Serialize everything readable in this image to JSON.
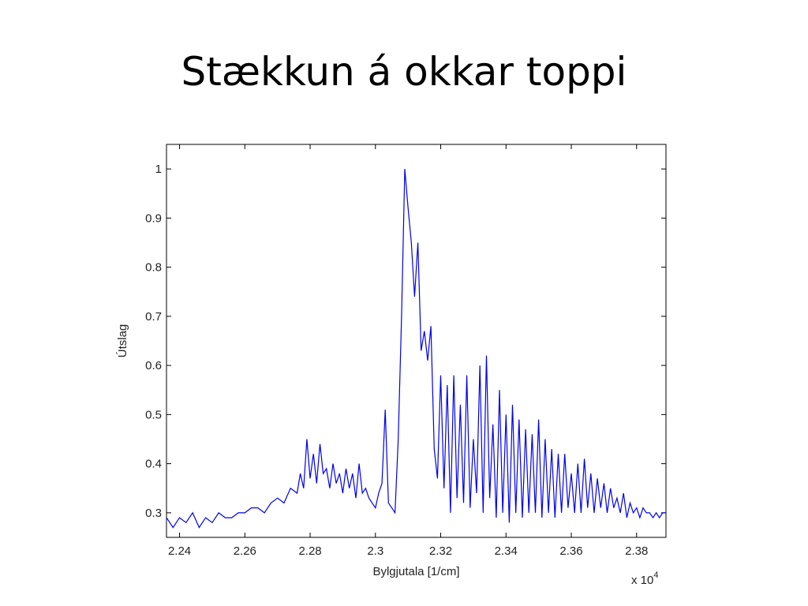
{
  "slide": {
    "title": "Stækkun á okkar toppi"
  },
  "chart_data": {
    "type": "line",
    "title": "",
    "xlabel": "Bylgjutala [1/cm]",
    "ylabel": "Útslag",
    "x_exponent_label": "x 10",
    "x_exponent_power": "4",
    "xlim": [
      2.236,
      2.389
    ],
    "ylim": [
      0.25,
      1.05
    ],
    "xticks": [
      2.24,
      2.26,
      2.28,
      2.3,
      2.32,
      2.34,
      2.36,
      2.38
    ],
    "xtick_labels": [
      "2.24",
      "2.26",
      "2.28",
      "2.3",
      "2.32",
      "2.34",
      "2.36",
      "2.38"
    ],
    "yticks": [
      0.3,
      0.4,
      0.5,
      0.6,
      0.7,
      0.8,
      0.9,
      1
    ],
    "ytick_labels": [
      "0.3",
      "0.4",
      "0.5",
      "0.6",
      "0.7",
      "0.8",
      "0.9",
      "1"
    ],
    "grid": false,
    "series": [
      {
        "color": "#0000ee",
        "x": [
          2.236,
          2.238,
          2.24,
          2.242,
          2.244,
          2.246,
          2.248,
          2.25,
          2.252,
          2.254,
          2.256,
          2.258,
          2.26,
          2.262,
          2.264,
          2.266,
          2.268,
          2.27,
          2.272,
          2.274,
          2.276,
          2.277,
          2.278,
          2.279,
          2.28,
          2.281,
          2.282,
          2.283,
          2.284,
          2.285,
          2.286,
          2.287,
          2.288,
          2.289,
          2.29,
          2.291,
          2.292,
          2.293,
          2.294,
          2.295,
          2.296,
          2.297,
          2.298,
          2.299,
          2.3,
          2.301,
          2.302,
          2.303,
          2.304,
          2.305,
          2.306,
          2.307,
          2.308,
          2.309,
          2.31,
          2.311,
          2.312,
          2.313,
          2.314,
          2.315,
          2.316,
          2.317,
          2.318,
          2.319,
          2.32,
          2.321,
          2.322,
          2.323,
          2.324,
          2.325,
          2.326,
          2.327,
          2.328,
          2.329,
          2.33,
          2.331,
          2.332,
          2.333,
          2.334,
          2.335,
          2.336,
          2.337,
          2.338,
          2.339,
          2.34,
          2.341,
          2.342,
          2.343,
          2.344,
          2.345,
          2.346,
          2.347,
          2.348,
          2.349,
          2.35,
          2.351,
          2.352,
          2.353,
          2.354,
          2.355,
          2.356,
          2.357,
          2.358,
          2.359,
          2.36,
          2.361,
          2.362,
          2.363,
          2.364,
          2.365,
          2.366,
          2.367,
          2.368,
          2.369,
          2.37,
          2.371,
          2.372,
          2.373,
          2.374,
          2.375,
          2.376,
          2.377,
          2.378,
          2.379,
          2.38,
          2.381,
          2.382,
          2.383,
          2.384,
          2.385,
          2.386,
          2.387,
          2.388,
          2.389
        ],
        "y": [
          0.29,
          0.27,
          0.29,
          0.28,
          0.3,
          0.27,
          0.29,
          0.28,
          0.3,
          0.29,
          0.29,
          0.3,
          0.3,
          0.31,
          0.31,
          0.3,
          0.32,
          0.33,
          0.32,
          0.35,
          0.34,
          0.38,
          0.35,
          0.45,
          0.37,
          0.42,
          0.36,
          0.44,
          0.38,
          0.39,
          0.35,
          0.4,
          0.36,
          0.38,
          0.34,
          0.39,
          0.35,
          0.38,
          0.33,
          0.4,
          0.34,
          0.35,
          0.33,
          0.32,
          0.31,
          0.34,
          0.36,
          0.51,
          0.32,
          0.31,
          0.3,
          0.45,
          0.7,
          1.0,
          0.92,
          0.85,
          0.74,
          0.85,
          0.63,
          0.67,
          0.61,
          0.68,
          0.43,
          0.37,
          0.58,
          0.35,
          0.56,
          0.3,
          0.58,
          0.33,
          0.52,
          0.32,
          0.58,
          0.31,
          0.45,
          0.34,
          0.6,
          0.3,
          0.62,
          0.33,
          0.48,
          0.29,
          0.55,
          0.3,
          0.5,
          0.28,
          0.52,
          0.3,
          0.49,
          0.29,
          0.47,
          0.3,
          0.46,
          0.3,
          0.49,
          0.29,
          0.45,
          0.3,
          0.43,
          0.29,
          0.42,
          0.3,
          0.42,
          0.31,
          0.38,
          0.3,
          0.4,
          0.3,
          0.41,
          0.31,
          0.38,
          0.3,
          0.37,
          0.31,
          0.36,
          0.3,
          0.35,
          0.31,
          0.33,
          0.3,
          0.34,
          0.29,
          0.32,
          0.3,
          0.31,
          0.29,
          0.31,
          0.3,
          0.3,
          0.29,
          0.3,
          0.29,
          0.3,
          0.3
        ]
      }
    ]
  }
}
